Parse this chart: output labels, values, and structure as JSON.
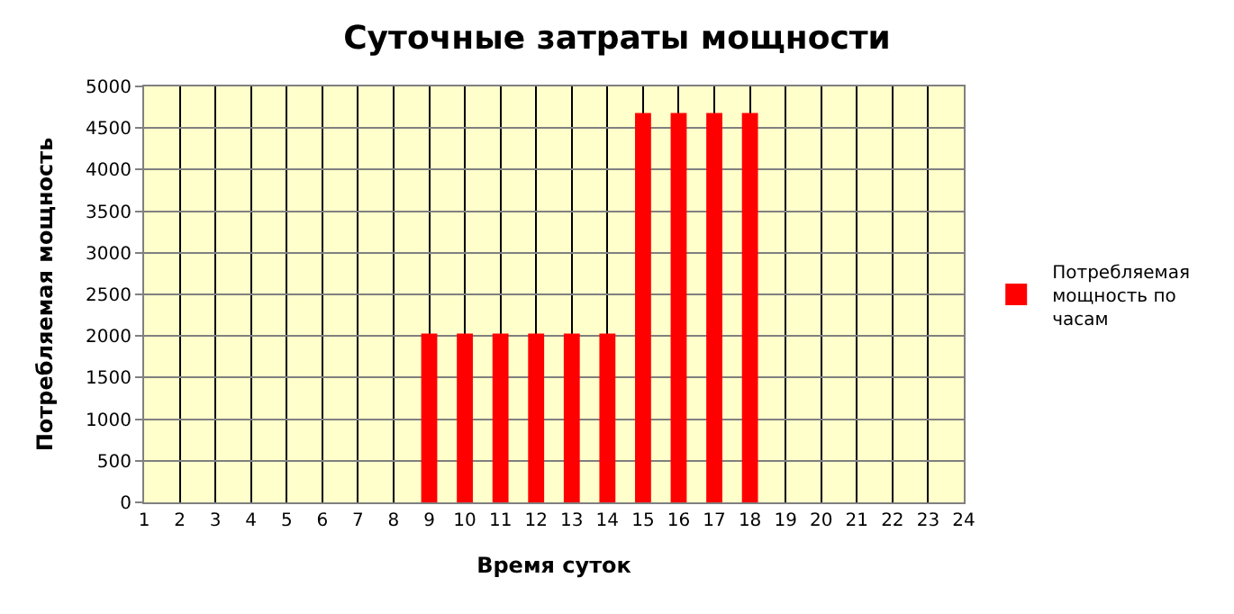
{
  "chart_data": {
    "type": "bar",
    "title": "Суточные затраты мощности",
    "xlabel": "Время суток",
    "ylabel": "Потребляемая мощность",
    "x": [
      9,
      10,
      11,
      12,
      13,
      14,
      15,
      16,
      17,
      18
    ],
    "series": [
      {
        "name": "Потребляемая мощность по часам",
        "color": "#ff0000",
        "values": [
          2030,
          2030,
          2030,
          2030,
          2030,
          2030,
          4680,
          4680,
          4680,
          4680
        ]
      }
    ],
    "xlim": [
      1,
      24
    ],
    "xticks": [
      1,
      2,
      3,
      4,
      5,
      6,
      7,
      8,
      9,
      10,
      11,
      12,
      13,
      14,
      15,
      16,
      17,
      18,
      19,
      20,
      21,
      22,
      23,
      24
    ],
    "ylim": [
      0,
      5000
    ],
    "yticks": [
      0,
      500,
      1000,
      1500,
      2000,
      2500,
      3000,
      3500,
      4000,
      4500,
      5000
    ],
    "grid": true,
    "legend": "right"
  }
}
